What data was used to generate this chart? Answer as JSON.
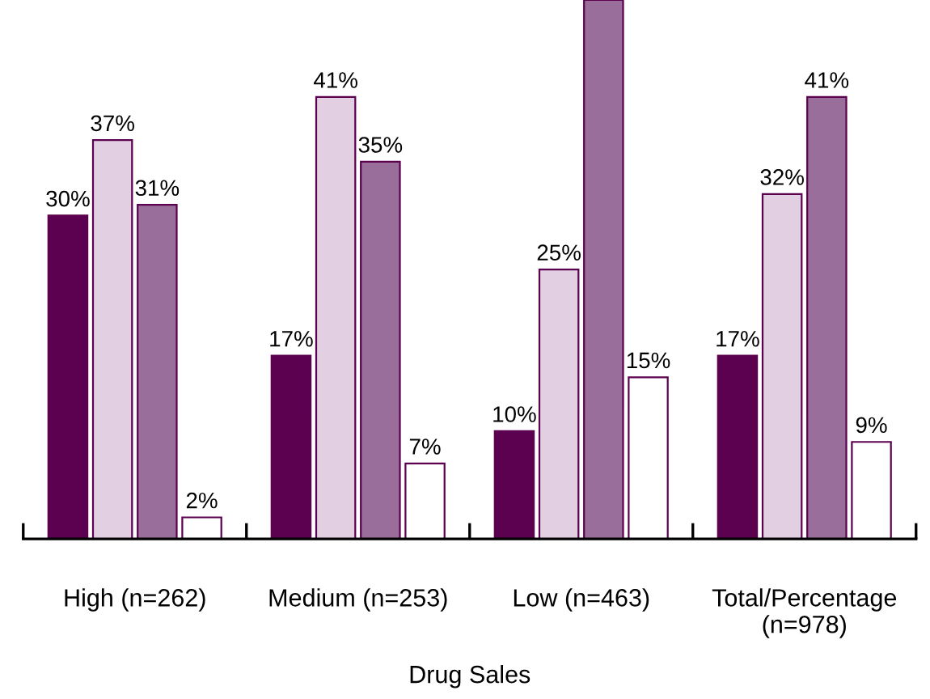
{
  "chart_data": {
    "type": "bar",
    "xlabel": "Drug Sales",
    "categories": [
      "High (n=262)",
      "Medium (n=253)",
      "Low (n=463)",
      "Total/Percentage\n(n=978)"
    ],
    "ylim": [
      0,
      50
    ],
    "tick_labels": "x",
    "grid": false,
    "legend": false,
    "series": [
      {
        "color": "#5c0050",
        "values": [
          30,
          17,
          10,
          17
        ],
        "value_labels": [
          "30%",
          "17%",
          "10%",
          "17%"
        ]
      },
      {
        "color": "#e2d0e2",
        "values": [
          37,
          41,
          25,
          32
        ],
        "value_labels": [
          "37%",
          "41%",
          "25%",
          "32%"
        ]
      },
      {
        "color": "#9a6e9a",
        "values": [
          31,
          35,
          50,
          41
        ],
        "value_labels": [
          "31%",
          "35%",
          null,
          "41%"
        ]
      },
      {
        "color": "#ffffff",
        "values": [
          2,
          7,
          15,
          9
        ],
        "value_labels": [
          "2%",
          "7%",
          "15%",
          "9%"
        ]
      }
    ]
  }
}
